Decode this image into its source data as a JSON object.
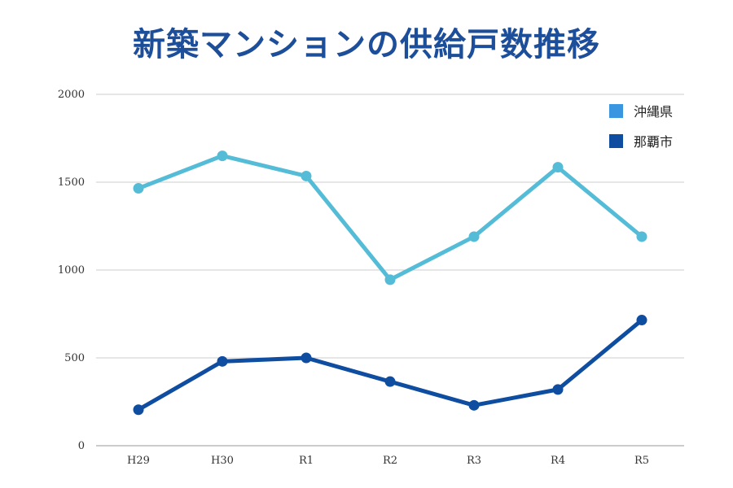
{
  "title": "新築マンションの供給戸数推移",
  "colors": {
    "okinawa": "#55bcd7",
    "naha": "#0f4da0",
    "legend_okinawa": "#3a96e0",
    "grid": "#cccccc",
    "title": "#1d4e9a"
  },
  "chart_data": {
    "type": "line",
    "categories": [
      "H29",
      "H30",
      "R1",
      "R2",
      "R3",
      "R4",
      "R5"
    ],
    "ylim": [
      0,
      2000
    ],
    "yticks": [
      "0",
      "500",
      "1000",
      "1500",
      "2000"
    ],
    "legend_position": "top-right",
    "grid": true,
    "series": [
      {
        "name": "沖縄県",
        "values": [
          1465,
          1650,
          1535,
          945,
          1190,
          1585,
          1190
        ]
      },
      {
        "name": "那覇市",
        "values": [
          205,
          480,
          500,
          365,
          230,
          320,
          715
        ]
      }
    ]
  }
}
